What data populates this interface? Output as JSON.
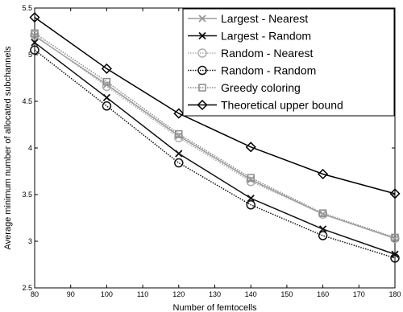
{
  "chart_data": {
    "type": "line",
    "xlabel": "Number of femtocells",
    "ylabel": "Average minimum number of allocated subchannels",
    "xlim": [
      80,
      180
    ],
    "ylim": [
      2.5,
      5.5
    ],
    "xticks": [
      80,
      90,
      100,
      110,
      120,
      130,
      140,
      150,
      160,
      170,
      180
    ],
    "yticks": [
      2.5,
      3,
      3.5,
      4,
      4.5,
      5,
      5.5
    ],
    "x": [
      80,
      100,
      120,
      140,
      160,
      180
    ],
    "grid": false,
    "legend_position": "top-right",
    "series": [
      {
        "name": "Largest - Nearest",
        "values": [
          5.2,
          4.68,
          4.13,
          3.66,
          3.29,
          3.03
        ],
        "color": "#9a9a9a",
        "marker": "x",
        "dash": "solid"
      },
      {
        "name": "Largest - Random",
        "values": [
          5.13,
          4.54,
          3.94,
          3.46,
          3.13,
          2.86
        ],
        "color": "#111111",
        "marker": "x",
        "dash": "solid"
      },
      {
        "name": "Random - Nearest",
        "values": [
          5.21,
          4.66,
          4.11,
          3.64,
          3.29,
          3.03
        ],
        "color": "#b0b0b0",
        "marker": "circle",
        "dash": "dotted"
      },
      {
        "name": "Random - Random",
        "values": [
          5.05,
          4.45,
          3.84,
          3.39,
          3.06,
          2.82
        ],
        "color": "#111111",
        "marker": "circle",
        "dash": "dotted"
      },
      {
        "name": "Greedy coloring",
        "values": [
          5.23,
          4.71,
          4.15,
          3.68,
          3.3,
          3.04
        ],
        "color": "#8c8c8c",
        "marker": "square",
        "dash": "dotted"
      },
      {
        "name": "Theoretical upper bound",
        "values": [
          5.4,
          4.85,
          4.37,
          4.01,
          3.72,
          3.51
        ],
        "color": "#000000",
        "marker": "diamond",
        "dash": "solid"
      }
    ]
  }
}
